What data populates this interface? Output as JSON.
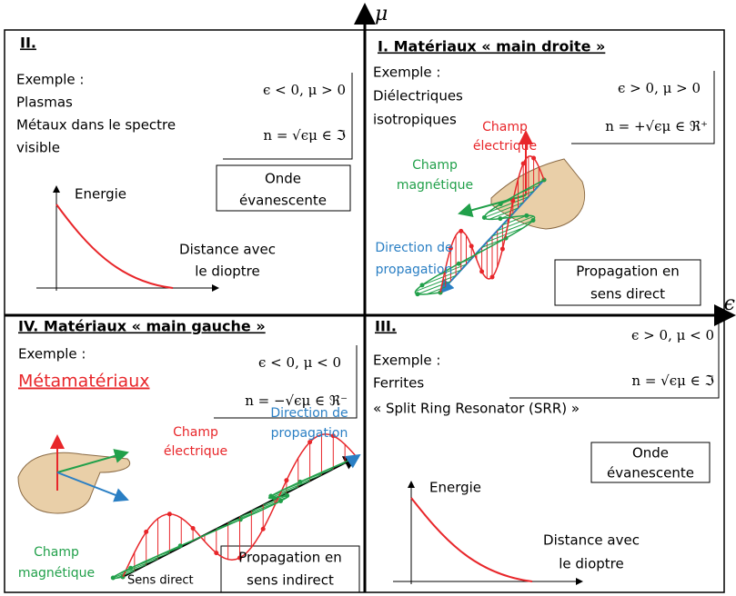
{
  "axes": {
    "y_label": "μ",
    "x_label": "ϵ"
  },
  "quadrants": [
    {
      "title": "II.",
      "example_label": "Exemple :",
      "examples": [
        "Plasmas",
        "Métaux dans le spectre",
        "visible"
      ],
      "condition": "ϵ < 0, μ > 0",
      "index": "n = √ϵμ ∈ ℑ",
      "box": [
        "Onde",
        "évanescente"
      ],
      "graph": {
        "y_label": "Energie",
        "x_label": [
          "Distance avec",
          "le dioptre"
        ]
      }
    },
    {
      "title": "I. Matériaux « main droite »",
      "example_label": "Exemple :",
      "examples": [
        "Diélectriques",
        "isotropiques"
      ],
      "condition": "ϵ > 0, μ > 0",
      "index": "n = +√ϵμ ∈ ℜ⁺",
      "electric": [
        "Champ",
        "électrique"
      ],
      "magnetic": [
        "Champ",
        "magnétique"
      ],
      "direction": [
        "Direction de",
        "propagation"
      ],
      "box": [
        "Propagation en",
        "sens direct"
      ]
    },
    {
      "title": "IV. Matériaux « main gauche »",
      "example_label": "Exemple :",
      "examples": [
        "Métamatériaux"
      ],
      "condition": "ϵ < 0, μ < 0",
      "index": "n = −√ϵμ ∈ ℜ⁻",
      "electric": [
        "Champ",
        "électrique"
      ],
      "magnetic": [
        "Champ",
        "magnétique"
      ],
      "direction": [
        "Direction de",
        "propagation"
      ],
      "sense": "Sens direct",
      "box": [
        "Propagation en",
        "sens indirect"
      ]
    },
    {
      "title": "III.",
      "example_label": "Exemple :",
      "examples": [
        "Ferrites",
        "« Split Ring Resonator (SRR) »"
      ],
      "condition": "ϵ > 0, μ < 0",
      "index": "n = √ϵμ ∈ ℑ",
      "box": [
        "Onde",
        "évanescente"
      ],
      "graph": {
        "y_label": "Energie",
        "x_label": [
          "Distance avec",
          "le dioptre"
        ]
      }
    }
  ]
}
